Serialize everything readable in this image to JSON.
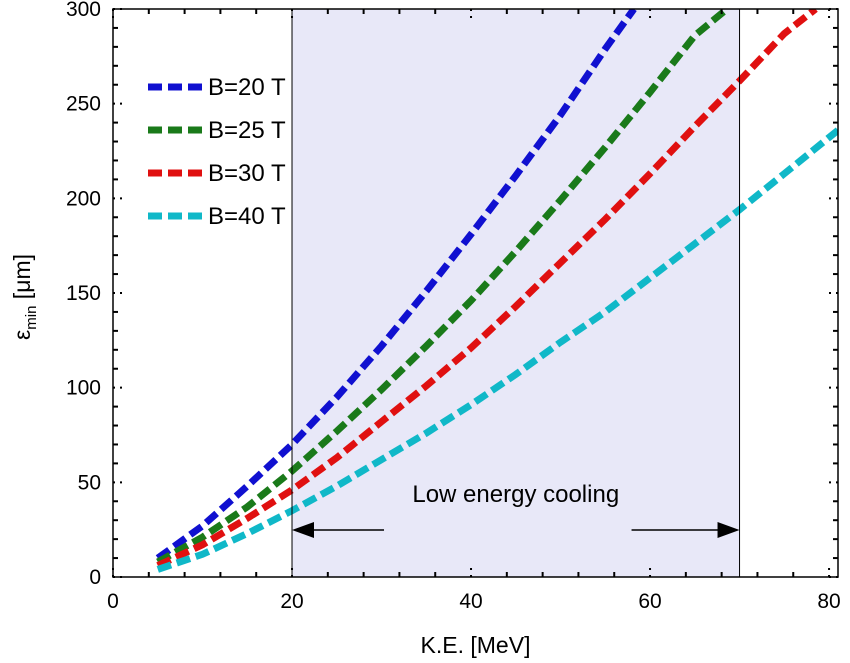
{
  "chart_data": {
    "type": "line",
    "xlabel": "K.E. [MeV]",
    "ylabel_main": "ε",
    "ylabel_sub": "min",
    "ylabel_unit": " [μm]",
    "xlim": [
      0,
      81
    ],
    "ylim": [
      0,
      300
    ],
    "x_ticks": [
      0,
      20,
      40,
      60,
      80
    ],
    "y_ticks": [
      0,
      50,
      100,
      150,
      200,
      250,
      300
    ],
    "grid": false,
    "legend_position": "upper-left",
    "shaded_region": {
      "x_start": 20,
      "x_end": 70,
      "color": "#e8e8f8"
    },
    "annotation": {
      "text": "Low energy cooling",
      "arrow_from": 20,
      "arrow_to": 70
    },
    "series": [
      {
        "name": "B=20 T",
        "color": "#1010d0",
        "x": [
          5,
          10,
          15,
          20,
          25,
          30,
          35,
          40,
          45,
          50,
          55,
          58.2
        ],
        "y": [
          10,
          27,
          48,
          70,
          95,
          122,
          151,
          181,
          212,
          244,
          279,
          300
        ]
      },
      {
        "name": "B=25 T",
        "color": "#1a7a1a",
        "x": [
          5,
          10,
          15,
          20,
          25,
          30,
          35,
          40,
          45,
          50,
          55,
          60,
          65,
          68.6
        ],
        "y": [
          8,
          21,
          37,
          56,
          77,
          99,
          122,
          146,
          172,
          199,
          227,
          256,
          286,
          300
        ]
      },
      {
        "name": "B=30 T",
        "color": "#e01010",
        "x": [
          5,
          10,
          15,
          20,
          25,
          30,
          35,
          40,
          45,
          50,
          55,
          60,
          65,
          70,
          75,
          78.5
        ],
        "y": [
          6,
          17,
          31,
          46,
          63,
          82,
          101,
          121,
          143,
          166,
          189,
          213,
          238,
          262,
          287,
          300
        ]
      },
      {
        "name": "B=40 T",
        "color": "#10b8c8",
        "x": [
          5,
          10,
          15,
          20,
          25,
          30,
          35,
          40,
          45,
          50,
          55,
          60,
          65,
          70,
          75,
          81
        ],
        "y": [
          4,
          12,
          23,
          35,
          48,
          62,
          76,
          91,
          107,
          124,
          140,
          158,
          176,
          194,
          213,
          236
        ]
      }
    ]
  }
}
